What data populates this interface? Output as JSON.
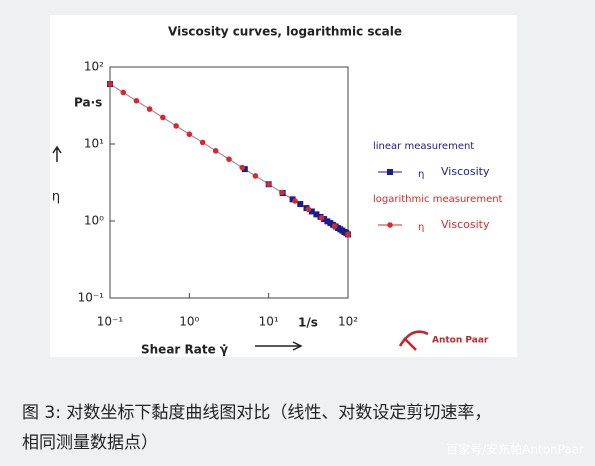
{
  "chart_data": {
    "type": "scatter",
    "title": "Viscosity curves, logarithmic scale",
    "x_label": "Shear Rate γ̇",
    "x_unit": "1/s",
    "y_label": "η",
    "y_unit": "Pa·s",
    "log_x": true,
    "log_y": true,
    "xlim": [
      0.1,
      100
    ],
    "xticks": [
      {
        "value": 0.1,
        "label": "10⁻¹"
      },
      {
        "value": 1,
        "label": "10⁰"
      },
      {
        "value": 10,
        "label": "10¹"
      },
      {
        "value": 100,
        "label": "10²"
      }
    ],
    "ylim": [
      0.1,
      100
    ],
    "yticks": [
      {
        "value": 0.1,
        "label": "10⁻¹"
      },
      {
        "value": 1,
        "label": "10⁰"
      },
      {
        "value": 10,
        "label": "10¹"
      },
      {
        "value": 100,
        "label": "10²"
      }
    ],
    "series": [
      {
        "group": "linear measurement",
        "symbol": "η",
        "name": "Viscosity",
        "color": "#1c1c8f",
        "marker": "square",
        "x": [
          0.1,
          5,
          10,
          15,
          20,
          25,
          30,
          35,
          40,
          45,
          50,
          55,
          60,
          65,
          70,
          75,
          80,
          85,
          90,
          95,
          100
        ],
        "values": [
          60,
          4.72,
          3.0,
          2.31,
          1.91,
          1.66,
          1.47,
          1.33,
          1.22,
          1.13,
          1.06,
          0.99,
          0.94,
          0.89,
          0.85,
          0.81,
          0.78,
          0.75,
          0.72,
          0.7,
          0.67
        ]
      },
      {
        "group": "logarithmic measurement",
        "symbol": "η",
        "name": "Viscosity",
        "color": "#d42a2a",
        "marker": "circle",
        "x": [
          0.1,
          0.147,
          0.215,
          0.316,
          0.464,
          0.681,
          1,
          1.47,
          2.15,
          3.16,
          4.64,
          6.81,
          10,
          14.7,
          21.5,
          31.6,
          46.4,
          68.1,
          100
        ],
        "values": [
          60,
          46.7,
          36.4,
          28.4,
          22.1,
          17.2,
          13.4,
          10.5,
          8.15,
          6.35,
          4.95,
          3.85,
          3.0,
          2.34,
          1.82,
          1.42,
          1.1,
          0.86,
          0.67
        ]
      }
    ],
    "brand": "Anton Paar"
  },
  "caption": [
    "图 3: 对数坐标下黏度曲线图对比（线性、对数设定剪切速率，",
    "相同测量数据点）"
  ],
  "watermark": "百家号/安东帕AntonPaar"
}
